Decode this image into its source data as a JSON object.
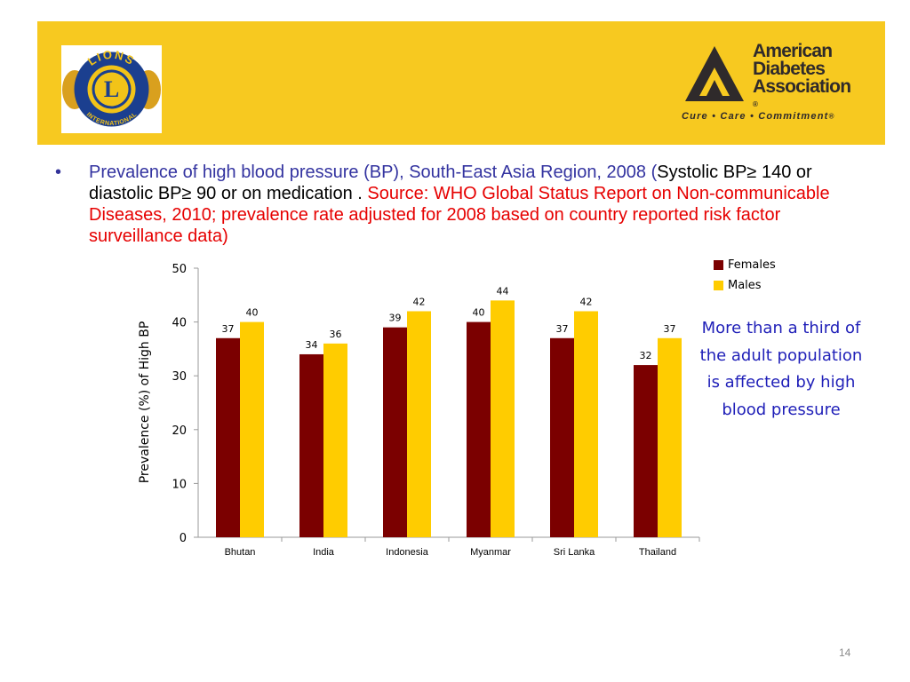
{
  "header": {
    "lions_logo": {
      "top_text": "LIONS",
      "bottom_text": "INTERNATIONAL",
      "letter": "L"
    },
    "ada_logo": {
      "line1": "American",
      "line2": "Diabetes",
      "line3": "Association",
      "tagline": "Cure • Care • Commitment"
    }
  },
  "bullet": {
    "symbol": "•",
    "text_blue": "Prevalence of high blood pressure (BP), South-East Asia Region, 2008 (",
    "text_black": "Systolic BP≥ 140 or diastolic BP≥ 90 or on medication . ",
    "text_red": "Source: WHO Global Status Report on Non-communicable Diseases, 2010; prevalence rate adjusted for 2008 based on country reported risk factor surveillance data)"
  },
  "side_note": "More than a third of the adult population is affected by high blood pressure",
  "page_number": "14",
  "colors": {
    "banner": "#f7c920",
    "females": "#7b0000",
    "males": "#ffcc00",
    "title_blue": "#3333a0",
    "source_red": "#e60000",
    "note_blue": "#1f1fb8"
  },
  "chart_data": {
    "type": "bar",
    "categories": [
      "Bhutan",
      "India",
      "Indonesia",
      "Myanmar",
      "Sri Lanka",
      "Thailand"
    ],
    "series": [
      {
        "name": "Females",
        "values": [
          37,
          34,
          39,
          40,
          37,
          32
        ]
      },
      {
        "name": "Males",
        "values": [
          40,
          36,
          42,
          44,
          42,
          37
        ]
      }
    ],
    "ylabel": "Prevalence (%) of High BP",
    "xlabel": "",
    "ylim": [
      0,
      50
    ],
    "yticks": [
      0,
      10,
      20,
      30,
      40,
      50
    ],
    "grid": false,
    "legend": "top-right",
    "data_labels": true
  }
}
